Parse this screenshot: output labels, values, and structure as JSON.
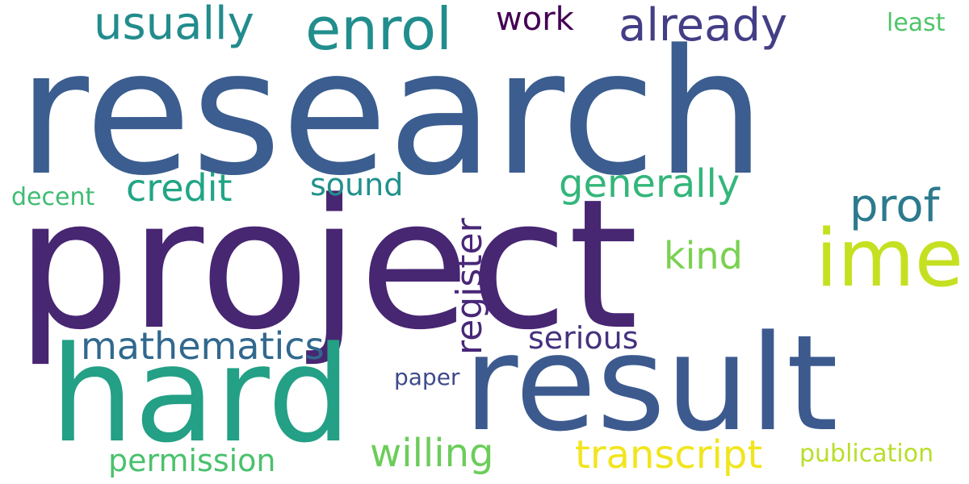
{
  "words": [
    {
      "id": "research",
      "text": "research",
      "color": "#3b5d8f"
    },
    {
      "id": "project",
      "text": "project",
      "color": "#472672"
    },
    {
      "id": "result",
      "text": "result",
      "color": "#3c5a8e"
    },
    {
      "id": "hard",
      "text": "hard",
      "color": "#23a085"
    },
    {
      "id": "ime",
      "text": "ime",
      "color": "#c5e021"
    },
    {
      "id": "enrol",
      "text": "enrol",
      "color": "#218e8d"
    },
    {
      "id": "usually",
      "text": "usually",
      "color": "#228c8d"
    },
    {
      "id": "already",
      "text": "already",
      "color": "#433e85"
    },
    {
      "id": "work",
      "text": "work",
      "color": "#440154"
    },
    {
      "id": "least",
      "text": "least",
      "color": "#4fc46a"
    },
    {
      "id": "prof",
      "text": "prof",
      "color": "#2c7a8e"
    },
    {
      "id": "register",
      "text": "register",
      "color": "#482777"
    },
    {
      "id": "generally",
      "text": "generally",
      "color": "#33b67a"
    },
    {
      "id": "credit",
      "text": "credit",
      "color": "#21a585"
    },
    {
      "id": "sound",
      "text": "sound",
      "color": "#21918c"
    },
    {
      "id": "decent",
      "text": "decent",
      "color": "#3fbc73"
    },
    {
      "id": "kind",
      "text": "kind",
      "color": "#7ad151"
    },
    {
      "id": "mathematics",
      "text": "mathematics",
      "color": "#31688e"
    },
    {
      "id": "serious",
      "text": "serious",
      "color": "#46327e"
    },
    {
      "id": "paper",
      "text": "paper",
      "color": "#3e4a89"
    },
    {
      "id": "willing",
      "text": "willing",
      "color": "#6ccd5a"
    },
    {
      "id": "transcript",
      "text": "transcript",
      "color": "#f1e51d"
    },
    {
      "id": "permission",
      "text": "permission",
      "color": "#4ac16d"
    },
    {
      "id": "publication",
      "text": "publication",
      "color": "#b8de29"
    }
  ]
}
